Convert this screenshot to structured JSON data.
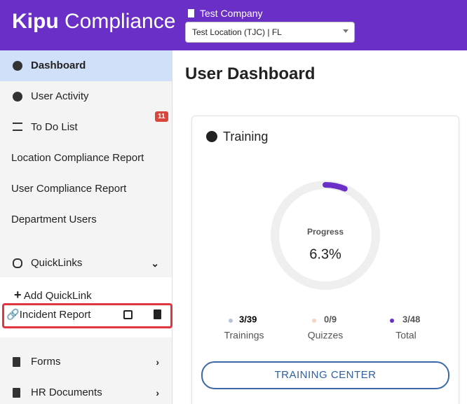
{
  "header": {
    "logo_bold": "Kipu",
    "logo_light": "Compliance",
    "company": "Test Company",
    "location_select": "Test Location (TJC) | FL"
  },
  "sidebar": {
    "items": [
      "Dashboard",
      "User Activity",
      "To Do List",
      "Location Compliance Report",
      "User Compliance Report",
      "Department Users"
    ],
    "todo_badge": "11",
    "quicklinks": {
      "title": "QuickLinks",
      "add": "Add QuickLink",
      "links": [
        "Incident Report"
      ]
    },
    "more": [
      "Forms",
      "HR Documents"
    ]
  },
  "main": {
    "title": "User Dashboard",
    "card": {
      "title": "Training",
      "progress": {
        "label": "Progress",
        "value": 6.3,
        "value_label": "6.3%"
      },
      "stats": [
        {
          "value": "3/39",
          "label": "Trainings"
        },
        {
          "value": "0/9",
          "label": "Quizzes"
        },
        {
          "value": "3/48",
          "label": "Total"
        }
      ],
      "button": "TRAINING CENTER"
    }
  }
}
